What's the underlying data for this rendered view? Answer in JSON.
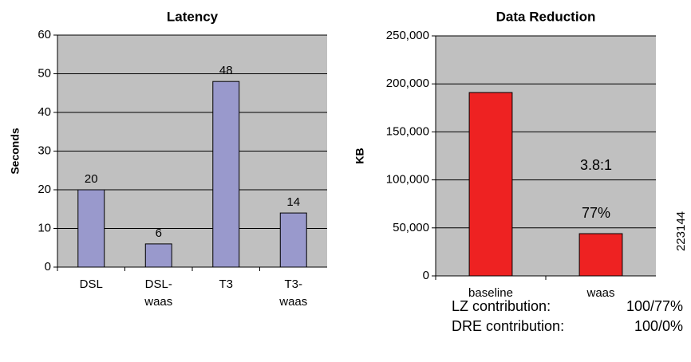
{
  "chart_data": [
    {
      "type": "bar",
      "title": "Latency",
      "y_label": "Seconds",
      "categories": [
        "DSL",
        "DSL-waas",
        "T3",
        "T3-waas"
      ],
      "values": [
        20,
        6,
        48,
        14
      ],
      "color": "#9999cc",
      "ylim": [
        0,
        60
      ],
      "yticks": [
        0,
        10,
        20,
        30,
        40,
        50,
        60
      ],
      "grid": true,
      "background": "#c0c0c0"
    },
    {
      "type": "bar",
      "title": "Data Reduction",
      "y_label": "KB",
      "categories": [
        "baseline",
        "waas"
      ],
      "values": [
        191000,
        44000
      ],
      "color": "#ee2222",
      "ylim": [
        0,
        250000
      ],
      "yticks": [
        0,
        {
          "value": 50000,
          "label": "50,000"
        },
        {
          "value": 100000,
          "label": "100,000"
        },
        {
          "value": 150000,
          "label": "150,000"
        },
        {
          "value": 200000,
          "label": "200,000"
        },
        {
          "value": 250000,
          "label": "250,000"
        }
      ],
      "grid": true,
      "background": "#c0c0c0",
      "annotations": [
        "3.8:1",
        "77%",
        "223144"
      ],
      "notes": [
        [
          "LZ contribution:",
          "100/77%"
        ],
        [
          "DRE contribution:",
          "100/0%"
        ]
      ]
    }
  ]
}
